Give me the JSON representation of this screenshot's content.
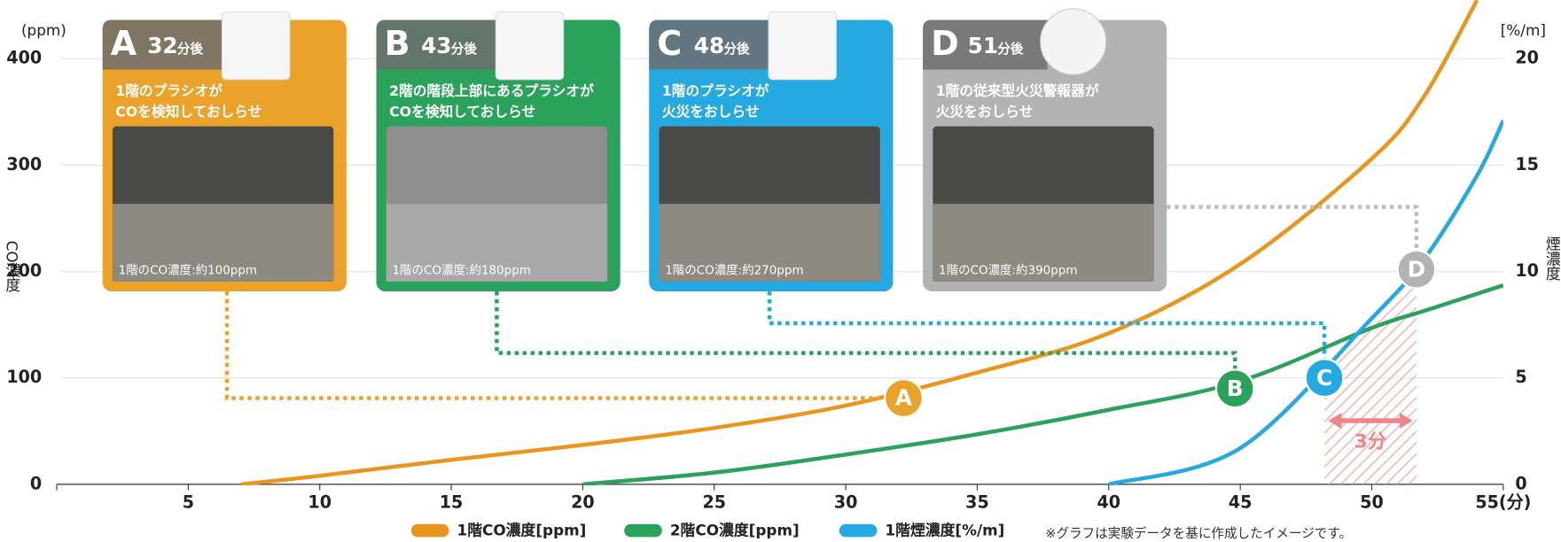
{
  "chart_data": {
    "type": "line",
    "y_unit": "(ppm)",
    "y2_unit": "[%/m]",
    "y_label": "CO濃度",
    "y2_label": "煙濃度",
    "x": [
      7,
      10,
      15,
      20,
      25,
      30,
      35,
      40,
      45,
      50,
      52,
      54,
      55
    ],
    "series": [
      {
        "name": "1階CO濃度[ppm]",
        "color": "#E9961E",
        "values": [
          0,
          8,
          23,
          37,
          53,
          74,
          105,
          142,
          207,
          306,
          365,
          455,
          null
        ]
      },
      {
        "name": "2階CO濃度[ppm]",
        "color": "#2BA25C",
        "values": [
          null,
          null,
          null,
          0,
          11,
          28,
          47,
          70,
          97,
          147,
          163,
          179,
          187
        ]
      },
      {
        "name": "1階煙濃度[%/m]",
        "color": "#26A8E0",
        "axis": "y2",
        "values": [
          null,
          null,
          null,
          null,
          null,
          null,
          null,
          0,
          1.7,
          7.8,
          10.6,
          14.5,
          17.1
        ]
      }
    ],
    "xlim": [
      0,
      55
    ],
    "xticks": [
      5,
      10,
      15,
      20,
      25,
      30,
      35,
      40,
      45,
      50,
      {
        "value": 55,
        "label": "55(分)"
      }
    ],
    "ylim": [
      0,
      400
    ],
    "yticks": [
      0,
      100,
      200,
      300,
      400
    ],
    "y2lim": [
      0,
      20
    ],
    "y2ticks": [
      0,
      5,
      10,
      15,
      20
    ],
    "grid": true,
    "cards": [
      {
        "letter": "A",
        "time": 32,
        "unit": "分後",
        "lines": [
          "1階のプラシオが",
          "COを検知しておしらせ"
        ],
        "caption": "1階のCO濃度:約100ppm",
        "color": "#EAA22A",
        "x": 32.2,
        "y": 81
      },
      {
        "letter": "B",
        "time": 43,
        "unit": "分後",
        "lines": [
          "2階の階段上部にあるプラシオが",
          "COを検知しておしらせ"
        ],
        "caption": "1階のCO濃度:約180ppm",
        "color": "#2BA25C",
        "x": 44.8,
        "y": 90
      },
      {
        "letter": "C",
        "time": 48,
        "unit": "分後",
        "lines": [
          "1階のプラシオが",
          "火災をおしらせ"
        ],
        "caption": "1階のCO濃度:約270ppm",
        "color": "#26A8E0",
        "x": 48.2,
        "y": 5,
        "axis": "y2"
      },
      {
        "letter": "D",
        "time": 51,
        "unit": "分後",
        "lines": [
          "1階の従来型火災警報器が",
          "火災をおしらせ"
        ],
        "caption": "1階のCO濃度:約390ppm",
        "color": "#B3B3B3",
        "x": 51.7,
        "y": 10.1,
        "axis": "y2"
      }
    ],
    "interval_label": "3分",
    "note": "※グラフは実験データを基に作成したイメージです。"
  }
}
